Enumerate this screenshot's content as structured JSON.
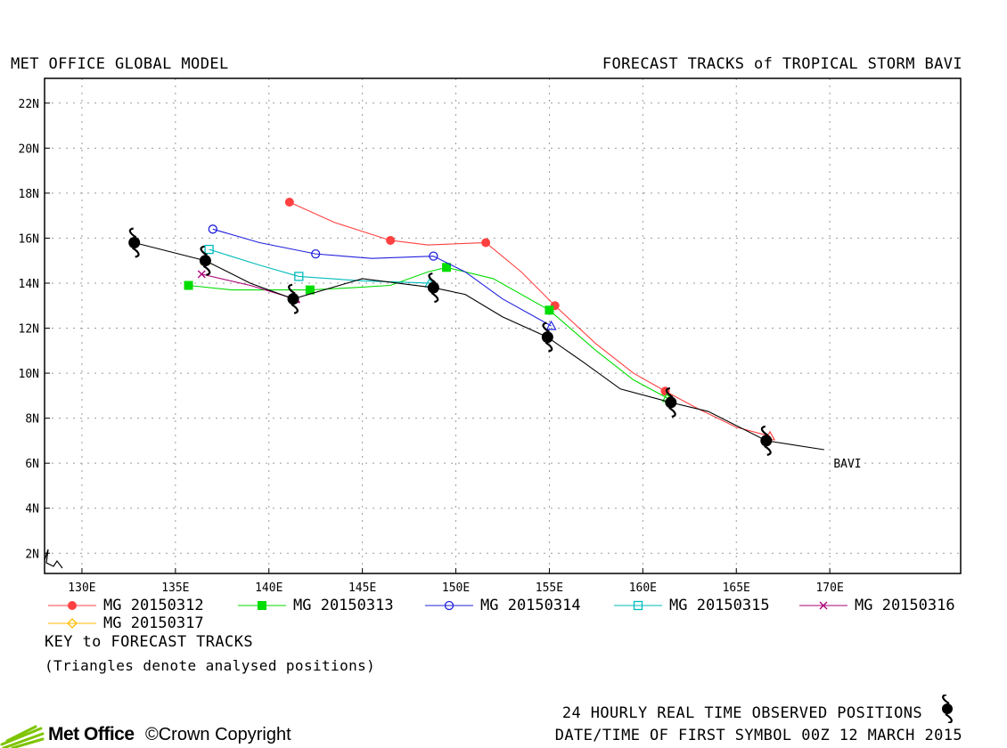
{
  "header": {
    "left_title": "MET OFFICE GLOBAL MODEL",
    "right_title": "FORECAST TRACKS of TROPICAL STORM BAVI"
  },
  "footer": {
    "key_title": "KEY to FORECAST TRACKS",
    "key_note": "(Triangles denote analysed positions)",
    "observed_note": "24 HOURLY REAL TIME OBSERVED POSITIONS",
    "first_symbol_note": "DATE/TIME OF FIRST SYMBOL 00Z 12 MARCH 2015",
    "brand": "Met Office",
    "copyright": "©Crown Copyright"
  },
  "chart_data": {
    "type": "line",
    "title": "FORECAST TRACKS of TROPICAL STORM BAVI",
    "x_axis": {
      "range": [
        128,
        177
      ],
      "ticks": [
        130,
        135,
        140,
        145,
        150,
        155,
        160,
        165,
        170
      ],
      "tick_labels": [
        "130E",
        "135E",
        "140E",
        "145E",
        "150E",
        "155E",
        "160E",
        "165E",
        "170E"
      ]
    },
    "y_axis": {
      "range": [
        1.1,
        23.1
      ],
      "ticks": [
        2,
        4,
        6,
        8,
        10,
        12,
        14,
        16,
        18,
        20,
        22
      ],
      "tick_labels": [
        "2N",
        "4N",
        "6N",
        "8N",
        "10N",
        "12N",
        "14N",
        "16N",
        "18N",
        "20N",
        "22N"
      ]
    },
    "grid": true,
    "legend_position": "bottom",
    "observed_track": {
      "name": "BAVI",
      "color": "#000000",
      "symbol": "storm-icon",
      "symbol_points": [
        [
          132.8,
          15.8
        ],
        [
          136.6,
          15.0
        ],
        [
          141.3,
          13.3
        ],
        [
          148.8,
          13.8
        ],
        [
          154.9,
          11.6
        ],
        [
          161.5,
          8.7
        ],
        [
          166.6,
          7.0
        ]
      ],
      "line": [
        [
          132.8,
          15.8
        ],
        [
          136.6,
          15.0
        ],
        [
          139.0,
          14.0
        ],
        [
          141.3,
          13.3
        ],
        [
          145.0,
          14.2
        ],
        [
          148.8,
          13.8
        ],
        [
          150.5,
          13.5
        ],
        [
          152.5,
          12.5
        ],
        [
          154.9,
          11.6
        ],
        [
          156.8,
          10.5
        ],
        [
          158.8,
          9.3
        ],
        [
          161.5,
          8.7
        ],
        [
          163.5,
          8.3
        ],
        [
          166.6,
          7.0
        ],
        [
          169.7,
          6.6
        ]
      ]
    },
    "series": [
      {
        "name": "MG 20150312",
        "color": "#ff4040",
        "marker": "filled-circle",
        "analysed_marker": "triangle",
        "line": [
          [
            141.1,
            17.6
          ],
          [
            143.5,
            16.7
          ],
          [
            146.5,
            15.9
          ],
          [
            148.5,
            15.7
          ],
          [
            151.6,
            15.8
          ],
          [
            153.5,
            14.5
          ],
          [
            155.3,
            13.0
          ],
          [
            157.5,
            11.3
          ],
          [
            159.5,
            10.0
          ],
          [
            161.2,
            9.2
          ],
          [
            163.0,
            8.4
          ],
          [
            165.0,
            7.6
          ],
          [
            166.8,
            7.2
          ]
        ],
        "points": [
          [
            141.1,
            17.6
          ],
          [
            146.5,
            15.9
          ],
          [
            151.6,
            15.8
          ],
          [
            155.3,
            13.0
          ],
          [
            161.2,
            9.2
          ]
        ],
        "analysed": [
          [
            166.8,
            7.2
          ]
        ]
      },
      {
        "name": "MG 20150313",
        "color": "#00dd00",
        "marker": "filled-square",
        "analysed_marker": "triangle",
        "line": [
          [
            135.7,
            13.9
          ],
          [
            138.0,
            13.7
          ],
          [
            140.0,
            13.7
          ],
          [
            142.2,
            13.7
          ],
          [
            144.5,
            13.8
          ],
          [
            146.5,
            13.9
          ],
          [
            148.5,
            14.5
          ],
          [
            149.5,
            14.7
          ],
          [
            152.0,
            14.2
          ],
          [
            155.0,
            12.8
          ],
          [
            157.5,
            11.0
          ],
          [
            159.5,
            9.7
          ],
          [
            161.3,
            8.9
          ]
        ],
        "points": [
          [
            135.7,
            13.9
          ],
          [
            142.2,
            13.7
          ],
          [
            149.5,
            14.7
          ],
          [
            155.0,
            12.8
          ]
        ],
        "analysed": [
          [
            161.3,
            8.9
          ]
        ]
      },
      {
        "name": "MG 20150314",
        "color": "#2020dd",
        "marker": "open-circle",
        "analysed_marker": "triangle",
        "line": [
          [
            137.0,
            16.4
          ],
          [
            139.5,
            15.8
          ],
          [
            142.5,
            15.3
          ],
          [
            145.5,
            15.1
          ],
          [
            148.8,
            15.2
          ],
          [
            150.5,
            14.5
          ],
          [
            152.5,
            13.3
          ],
          [
            155.1,
            12.1
          ]
        ],
        "points": [
          [
            137.0,
            16.4
          ],
          [
            142.5,
            15.3
          ],
          [
            148.8,
            15.2
          ]
        ],
        "analysed": [
          [
            155.1,
            12.1
          ]
        ]
      },
      {
        "name": "MG 20150315",
        "color": "#00bbbb",
        "marker": "open-square",
        "analysed_marker": "triangle",
        "line": [
          [
            136.8,
            15.5
          ],
          [
            139.5,
            14.8
          ],
          [
            141.6,
            14.3
          ],
          [
            145.0,
            14.1
          ],
          [
            148.6,
            14.0
          ]
        ],
        "points": [
          [
            136.8,
            15.5
          ],
          [
            141.6,
            14.3
          ]
        ],
        "analysed": [
          [
            148.6,
            14.0
          ]
        ]
      },
      {
        "name": "MG 20150316",
        "color": "#aa0077",
        "marker": "x",
        "analysed_marker": "triangle",
        "line": [
          [
            136.4,
            14.4
          ],
          [
            139.0,
            13.9
          ],
          [
            141.4,
            13.3
          ]
        ],
        "points": [
          [
            136.4,
            14.4
          ]
        ],
        "analysed": [
          [
            141.4,
            13.3
          ]
        ]
      },
      {
        "name": "MG 20150317",
        "color": "#ffbb00",
        "marker": "diamond",
        "analysed_marker": "triangle",
        "line": [],
        "points": [],
        "analysed": [
          [
            136.6,
            15.0
          ]
        ]
      }
    ],
    "labels": [
      {
        "text": "BAVI",
        "x": 170.2,
        "y": 6.0
      }
    ]
  }
}
